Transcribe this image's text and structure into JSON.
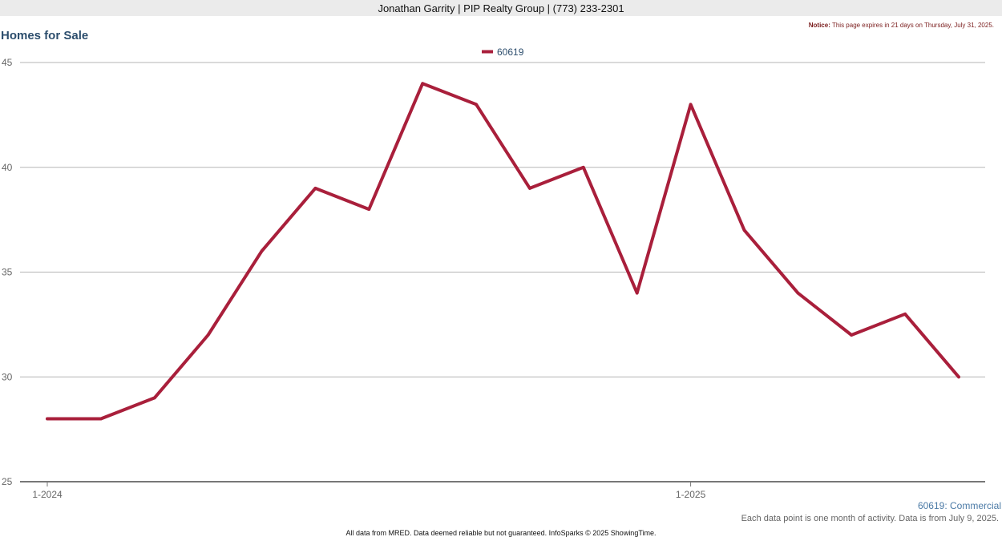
{
  "header": {
    "agent_line": "Jonathan Garrity | PIP Realty Group | (773) 233-2301"
  },
  "notice": {
    "label": "Notice:",
    "text": "This page expires in 21 days on Thursday, July 31, 2025."
  },
  "page_title": "Homes for Sale",
  "chart_data": {
    "type": "line",
    "title": "",
    "xlabel": "",
    "ylabel": "",
    "x": [
      "1-2024",
      "2-2024",
      "3-2024",
      "4-2024",
      "5-2024",
      "6-2024",
      "7-2024",
      "8-2024",
      "9-2024",
      "10-2024",
      "11-2024",
      "12-2024",
      "1-2025",
      "2-2025",
      "3-2025",
      "4-2025",
      "5-2025",
      "6-2025"
    ],
    "x_tick_labels": [
      "1-2024",
      "1-2025"
    ],
    "ylim": [
      25,
      45
    ],
    "y_ticks": [
      25,
      30,
      35,
      40,
      45
    ],
    "grid": true,
    "legend_position": "top-center",
    "series": [
      {
        "name": "60619",
        "color": "#a91f3b",
        "values": [
          28,
          28,
          29,
          32,
          36,
          39,
          38,
          44,
          43,
          39,
          40,
          34,
          43,
          37,
          34,
          32,
          33,
          30
        ]
      }
    ]
  },
  "series_caption": "60619: Commercial",
  "footnote": "Each data point is one month of activity. Data is from July 9, 2025.",
  "footer": "All data from MRED. Data deemed reliable but not guaranteed. InfoSparks © 2025 ShowingTime."
}
